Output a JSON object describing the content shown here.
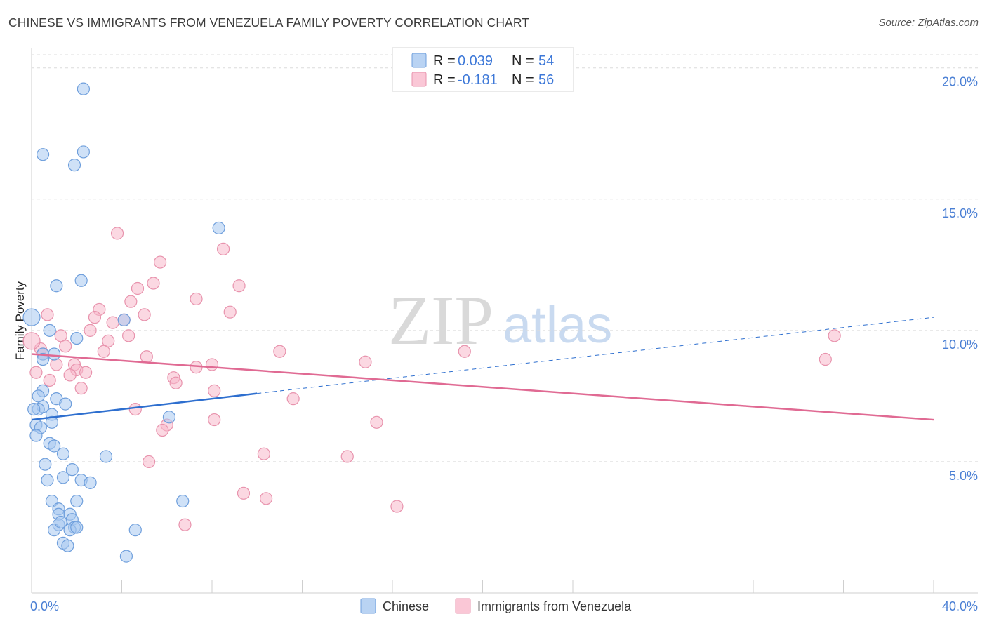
{
  "header": {
    "title": "CHINESE VS IMMIGRANTS FROM VENEZUELA FAMILY POVERTY CORRELATION CHART",
    "source": "Source: ZipAtlas.com"
  },
  "watermark": {
    "zip": "ZIP",
    "atlas": "atlas"
  },
  "colors": {
    "chinese_fill": "#a8c8f0",
    "chinese_stroke": "#6f9fdc",
    "chinese_line": "#2e6fcf",
    "venezuela_fill": "#f7b8cb",
    "venezuela_stroke": "#e893ad",
    "venezuela_line": "#e06a93",
    "tick_text": "#4a7fd4"
  },
  "stats_legend": [
    {
      "r_label": "R =",
      "r_value": "0.039",
      "n_label": "N =",
      "n_value": "54"
    },
    {
      "r_label": "R =",
      "r_value": "-0.181",
      "n_label": "N =",
      "n_value": "56"
    }
  ],
  "bottom_legend": [
    "Chinese",
    "Immigrants from Venezuela"
  ],
  "chart_data": {
    "type": "scatter",
    "title": "CHINESE VS IMMIGRANTS FROM VENEZUELA FAMILY POVERTY CORRELATION CHART",
    "xlabel": "",
    "ylabel": "Family Poverty",
    "xlim": [
      0,
      40
    ],
    "ylim": [
      0,
      20.5
    ],
    "x_tick_labels": [
      {
        "value": 0,
        "label": "0.0%"
      },
      {
        "value": 40,
        "label": "40.0%"
      }
    ],
    "y_tick_labels": [
      {
        "value": 5,
        "label": "5.0%"
      },
      {
        "value": 10,
        "label": "10.0%"
      },
      {
        "value": 15,
        "label": "15.0%"
      },
      {
        "value": 20,
        "label": "20.0%"
      }
    ],
    "series": [
      {
        "name": "Chinese",
        "r": 0.039,
        "n": 54,
        "trend": {
          "x0": 0,
          "y0": 6.6,
          "x1": 10,
          "y1": 7.6,
          "dash_to_x": 40,
          "dash_to_y": 10.5
        },
        "points": [
          [
            2.3,
            19.2
          ],
          [
            0.5,
            16.7
          ],
          [
            1.9,
            16.3
          ],
          [
            2.3,
            16.8
          ],
          [
            8.3,
            13.9
          ],
          [
            2.2,
            11.9
          ],
          [
            1.1,
            11.7
          ],
          [
            0.0,
            10.5
          ],
          [
            4.1,
            10.4
          ],
          [
            0.8,
            10.0
          ],
          [
            2.0,
            9.7
          ],
          [
            0.5,
            9.1
          ],
          [
            1.0,
            9.1
          ],
          [
            0.5,
            8.9
          ],
          [
            0.5,
            7.7
          ],
          [
            1.1,
            7.4
          ],
          [
            0.3,
            7.5
          ],
          [
            1.5,
            7.2
          ],
          [
            0.5,
            7.1
          ],
          [
            0.3,
            7.0
          ],
          [
            0.1,
            7.0
          ],
          [
            6.1,
            6.7
          ],
          [
            0.9,
            6.8
          ],
          [
            0.2,
            6.4
          ],
          [
            0.9,
            6.5
          ],
          [
            0.4,
            6.3
          ],
          [
            0.2,
            6.0
          ],
          [
            0.8,
            5.7
          ],
          [
            1.0,
            5.6
          ],
          [
            1.4,
            5.3
          ],
          [
            3.3,
            5.2
          ],
          [
            0.6,
            4.9
          ],
          [
            1.8,
            4.7
          ],
          [
            1.4,
            4.4
          ],
          [
            0.7,
            4.3
          ],
          [
            2.2,
            4.3
          ],
          [
            2.6,
            4.2
          ],
          [
            0.9,
            3.5
          ],
          [
            2.0,
            3.5
          ],
          [
            6.7,
            3.5
          ],
          [
            1.2,
            3.2
          ],
          [
            1.2,
            3.0
          ],
          [
            1.7,
            3.0
          ],
          [
            1.8,
            2.8
          ],
          [
            1.2,
            2.6
          ],
          [
            1.9,
            2.5
          ],
          [
            1.0,
            2.4
          ],
          [
            1.7,
            2.4
          ],
          [
            2.0,
            2.5
          ],
          [
            4.6,
            2.4
          ],
          [
            1.4,
            1.9
          ],
          [
            1.6,
            1.8
          ],
          [
            4.2,
            1.4
          ],
          [
            1.3,
            2.7
          ]
        ]
      },
      {
        "name": "Immigrants from Venezuela",
        "r": -0.181,
        "n": 56,
        "trend": {
          "x0": 0,
          "y0": 9.1,
          "x1": 40,
          "y1": 6.6
        },
        "points": [
          [
            3.8,
            13.7
          ],
          [
            8.5,
            13.1
          ],
          [
            5.7,
            12.6
          ],
          [
            5.4,
            11.8
          ],
          [
            9.2,
            11.7
          ],
          [
            4.7,
            11.6
          ],
          [
            7.3,
            11.2
          ],
          [
            4.4,
            11.1
          ],
          [
            3.0,
            10.8
          ],
          [
            0.7,
            10.6
          ],
          [
            8.8,
            10.7
          ],
          [
            5.0,
            10.6
          ],
          [
            2.8,
            10.5
          ],
          [
            3.6,
            10.3
          ],
          [
            4.1,
            10.4
          ],
          [
            2.6,
            10.0
          ],
          [
            4.3,
            9.8
          ],
          [
            1.3,
            9.8
          ],
          [
            3.4,
            9.6
          ],
          [
            1.5,
            9.4
          ],
          [
            0.4,
            9.3
          ],
          [
            11.0,
            9.2
          ],
          [
            3.2,
            9.2
          ],
          [
            19.2,
            9.2
          ],
          [
            5.1,
            9.0
          ],
          [
            0.5,
            9.1
          ],
          [
            8.0,
            8.7
          ],
          [
            14.8,
            8.8
          ],
          [
            1.1,
            8.7
          ],
          [
            7.3,
            8.6
          ],
          [
            1.9,
            8.7
          ],
          [
            0.2,
            8.4
          ],
          [
            2.0,
            8.5
          ],
          [
            2.4,
            8.4
          ],
          [
            1.7,
            8.3
          ],
          [
            6.3,
            8.2
          ],
          [
            0.8,
            8.1
          ],
          [
            6.4,
            8.0
          ],
          [
            2.2,
            7.8
          ],
          [
            8.1,
            7.7
          ],
          [
            11.6,
            7.4
          ],
          [
            4.6,
            7.0
          ],
          [
            35.6,
            9.8
          ],
          [
            35.2,
            8.9
          ],
          [
            8.1,
            6.6
          ],
          [
            15.3,
            6.5
          ],
          [
            6.0,
            6.4
          ],
          [
            5.8,
            6.2
          ],
          [
            10.3,
            5.3
          ],
          [
            14.0,
            5.2
          ],
          [
            5.2,
            5.0
          ],
          [
            9.4,
            3.8
          ],
          [
            10.4,
            3.6
          ],
          [
            16.2,
            3.3
          ],
          [
            6.8,
            2.6
          ],
          [
            0.0,
            9.6
          ]
        ]
      }
    ]
  }
}
